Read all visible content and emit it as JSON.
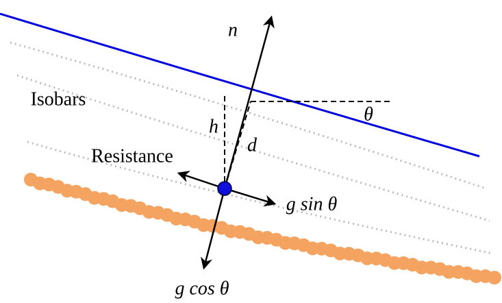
{
  "labels": {
    "n": "n",
    "isobars": "Isobars",
    "h": "h",
    "d": "d",
    "theta": "θ",
    "resistance": "Resistance",
    "g_sin": "g sin θ",
    "g_cos": "g cos θ"
  }
}
